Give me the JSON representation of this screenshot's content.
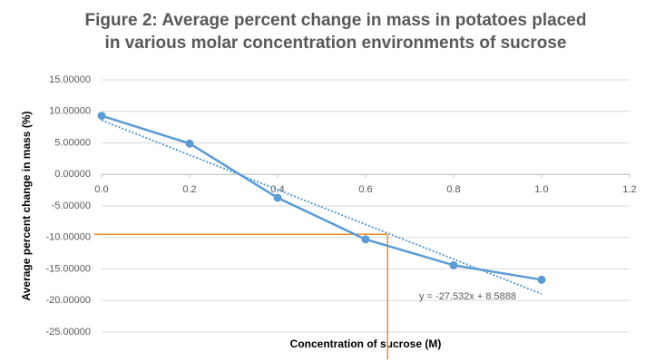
{
  "chart_data": {
    "type": "line",
    "title": "Figure 2: Average percent change in mass in potatoes placed in various molar concentration environments of sucrose",
    "x_label": "Concentration of sucrose (M)",
    "y_label": "Average percent change in mass (%)",
    "x": [
      0,
      0.2,
      0.4,
      0.6,
      0.8,
      1.0
    ],
    "series": [
      {
        "color": "#5b9bd5",
        "values": [
          9.3,
          4.9,
          -3.7,
          -10.3,
          -14.4,
          -16.7
        ]
      }
    ],
    "trendline": {
      "label": "y = -27.532x + 8.5888",
      "x": [
        0,
        1.0
      ],
      "values": [
        8.5888,
        -18.9432
      ],
      "color": "#5b9bd5"
    },
    "reference_lines": {
      "x": 0.65,
      "y": -9.5,
      "color": "#f08c2e"
    },
    "xlim": [
      0,
      1.2
    ],
    "xticks": [
      {
        "value": 0,
        "label": "0.0"
      },
      0.2,
      0.4,
      0.6,
      0.8,
      {
        "value": 1.0,
        "label": "1.0"
      },
      1.2
    ],
    "ylim": [
      -25,
      15
    ],
    "yticks": [
      {
        "value": 15,
        "label": "15.00000"
      },
      {
        "value": 10,
        "label": "10.00000"
      },
      {
        "value": 5,
        "label": "5.00000"
      },
      {
        "value": 0,
        "label": "0.00000"
      },
      {
        "value": -5,
        "label": "-5.00000"
      },
      {
        "value": -10,
        "label": "-10.00000"
      },
      {
        "value": -15,
        "label": "-15.00000"
      },
      {
        "value": -20,
        "label": "-20.00000"
      },
      {
        "value": -25,
        "label": "-25.00000"
      }
    ],
    "grid": true
  }
}
